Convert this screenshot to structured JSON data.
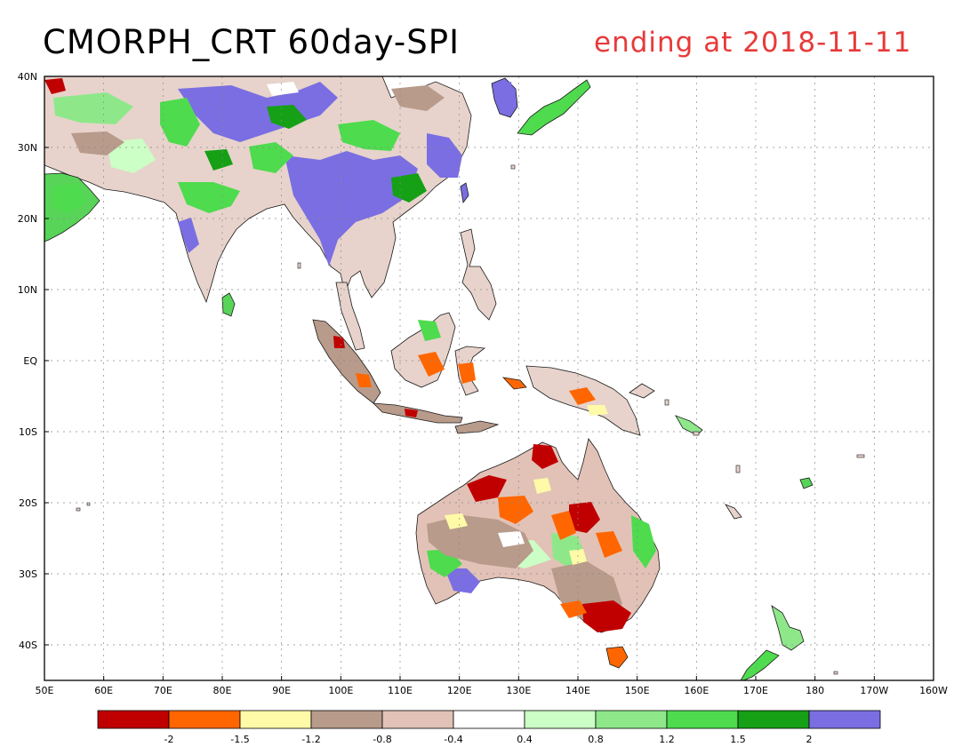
{
  "title": {
    "left": "CMORPH_CRT 60day-SPI",
    "right": "ending at 2018-11-11"
  },
  "lat_labels": [
    "40N",
    "30N",
    "20N",
    "10N",
    "EQ",
    "10S",
    "20S",
    "30S",
    "40S"
  ],
  "lat_values": [
    40,
    30,
    20,
    10,
    0,
    -10,
    -20,
    -30,
    -40
  ],
  "lon_labels": [
    "50E",
    "60E",
    "70E",
    "80E",
    "90E",
    "100E",
    "110E",
    "120E",
    "130E",
    "140E",
    "150E",
    "160E",
    "170E",
    "180",
    "170W",
    "160W"
  ],
  "lon_values": [
    50,
    60,
    70,
    80,
    90,
    100,
    110,
    120,
    130,
    140,
    150,
    160,
    170,
    180,
    190,
    200
  ],
  "map_extent": {
    "lon": [
      50,
      200
    ],
    "lat": [
      -45,
      40
    ]
  },
  "colorbar": {
    "colors": [
      "#c00000",
      "#ff6600",
      "#fffaa8",
      "#b89b8b",
      "#e2c2b6",
      "#ffffff",
      "#ccffc5",
      "#8ee88a",
      "#4edb4e",
      "#15a015",
      "#7a6ee2"
    ],
    "labels": [
      "-2",
      "-1.5",
      "-1.2",
      "-0.8",
      "-0.4",
      "0.4",
      "0.8",
      "1.2",
      "1.5",
      "2"
    ]
  },
  "legend_meaning": {
    "dry_colors": [
      "#c00000",
      "#ff6600",
      "#fffaa8",
      "#b89b8b",
      "#e2c2b6"
    ],
    "wet_colors": [
      "#ccffc5",
      "#8ee88a",
      "#4edb4e",
      "#15a015",
      "#7a6ee2"
    ]
  }
}
